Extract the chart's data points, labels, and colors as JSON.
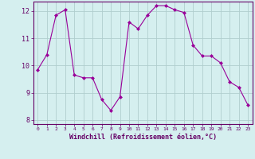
{
  "x": [
    0,
    1,
    2,
    3,
    4,
    5,
    6,
    7,
    8,
    9,
    10,
    11,
    12,
    13,
    14,
    15,
    16,
    17,
    18,
    19,
    20,
    21,
    22,
    23
  ],
  "y": [
    9.85,
    10.4,
    11.85,
    12.05,
    9.65,
    9.55,
    9.55,
    8.75,
    8.35,
    8.85,
    11.6,
    11.35,
    11.85,
    12.2,
    12.2,
    12.05,
    11.95,
    10.75,
    10.35,
    10.35,
    10.1,
    9.4,
    9.2,
    8.55
  ],
  "line_color": "#990099",
  "marker": "D",
  "marker_size": 2,
  "bg_color": "#d5efef",
  "grid_color": "#b0cece",
  "xlabel": "Windchill (Refroidissement éolien,°C)",
  "ylabel_ticks": [
    8,
    9,
    10,
    11,
    12
  ],
  "xtick_labels": [
    "0",
    "1",
    "2",
    "3",
    "4",
    "5",
    "6",
    "7",
    "8",
    "9",
    "10",
    "11",
    "12",
    "13",
    "14",
    "15",
    "16",
    "17",
    "18",
    "19",
    "20",
    "21",
    "22",
    "23"
  ],
  "ylim": [
    7.85,
    12.35
  ],
  "xlim": [
    -0.5,
    23.5
  ],
  "axis_color": "#660066",
  "font_color": "#660066"
}
